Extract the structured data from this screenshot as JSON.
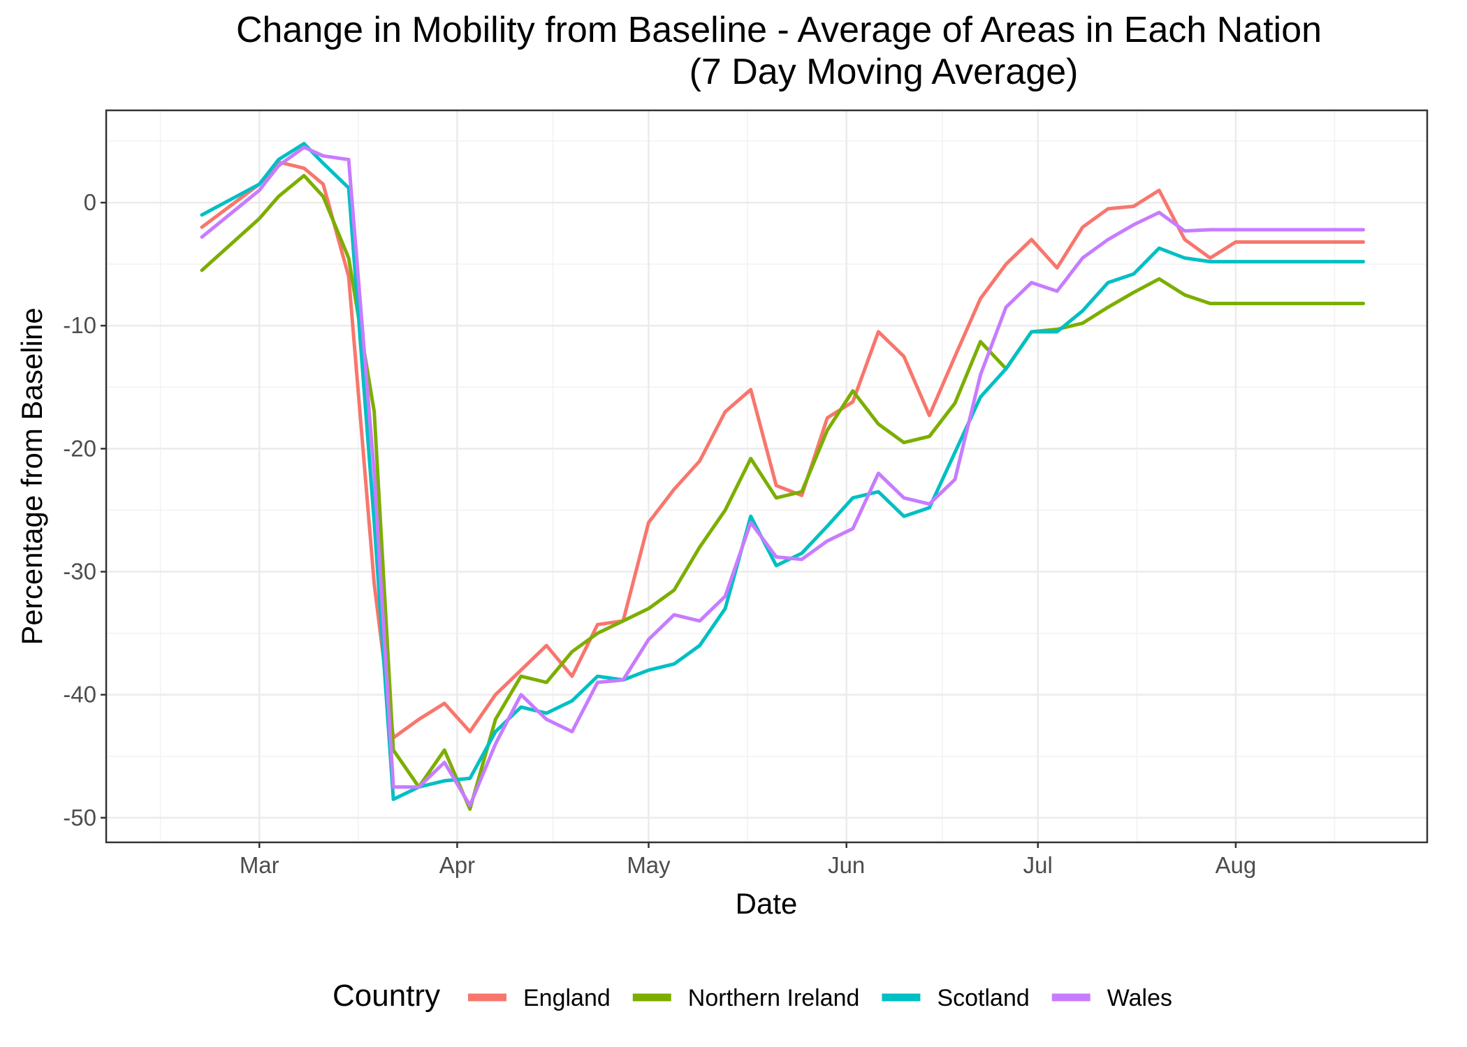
{
  "chart_data": {
    "type": "line",
    "title": "Change in Mobility from Baseline - Average of Areas in Each Nation",
    "subtitle": "(7 Day Moving Average)",
    "xlabel": "Date",
    "ylabel": "Percentage from Baseline",
    "x_ticks": [
      "Mar",
      "Apr",
      "May",
      "Jun",
      "Jul",
      "Aug"
    ],
    "x_tick_dates": [
      "2020-03-01",
      "2020-04-01",
      "2020-05-01",
      "2020-06-01",
      "2020-07-01",
      "2020-08-01"
    ],
    "xlim": [
      "2020-02-06",
      "2020-08-31"
    ],
    "y_ticks": [
      0,
      -10,
      -20,
      -30,
      -40,
      -50
    ],
    "ylim": [
      -52,
      7.5
    ],
    "grid": true,
    "legend_title": "Country",
    "legend_position": "bottom",
    "x_dates": [
      "2020-02-21",
      "2020-03-01",
      "2020-03-04",
      "2020-03-08",
      "2020-03-11",
      "2020-03-15",
      "2020-03-19",
      "2020-03-22",
      "2020-03-26",
      "2020-03-30",
      "2020-04-03",
      "2020-04-07",
      "2020-04-11",
      "2020-04-15",
      "2020-04-19",
      "2020-04-23",
      "2020-04-27",
      "2020-05-01",
      "2020-05-05",
      "2020-05-09",
      "2020-05-13",
      "2020-05-17",
      "2020-05-21",
      "2020-05-25",
      "2020-05-29",
      "2020-06-02",
      "2020-06-06",
      "2020-06-10",
      "2020-06-14",
      "2020-06-18",
      "2020-06-22",
      "2020-06-26",
      "2020-06-30",
      "2020-07-04",
      "2020-07-08",
      "2020-07-12",
      "2020-07-16",
      "2020-07-20",
      "2020-07-24",
      "2020-07-28",
      "2020-08-01",
      "2020-08-05",
      "2020-08-09",
      "2020-08-13",
      "2020-08-17",
      "2020-08-21"
    ],
    "series": [
      {
        "name": "England",
        "color": "#F8766D",
        "values": [
          -2,
          1.5,
          3.3,
          2.8,
          1.5,
          -6,
          -31,
          -43.5,
          -42,
          -40.7,
          -43,
          -40,
          -38,
          -36,
          -38.5,
          -34.3,
          -34,
          -26,
          -23.3,
          -21,
          -17,
          -15.2,
          -23,
          -23.8,
          -17.5,
          -16.2,
          -10.5,
          -12.5,
          -17.3,
          -12.5,
          -7.8,
          -5,
          -3,
          -5.3,
          -2,
          -0.5,
          -0.3,
          1,
          -3,
          -4.5,
          -3.2,
          -3.2,
          -3.2,
          -3.2,
          -3.2,
          -3.2
        ]
      },
      {
        "name": "Northern Ireland",
        "color": "#7CAE00",
        "values": [
          -5.5,
          -1.3,
          0.5,
          2.2,
          0.5,
          -4.5,
          -17,
          -44.5,
          -47.5,
          -44.5,
          -49.3,
          -42,
          -38.5,
          -39,
          -36.5,
          -35,
          -34,
          -33,
          -31.5,
          -28,
          -25,
          -20.8,
          -24,
          -23.5,
          -18.5,
          -15.3,
          -18,
          -19.5,
          -19,
          -16.3,
          -11.3,
          -13.5,
          -10.5,
          -10.3,
          -9.8,
          -8.5,
          -7.3,
          -6.2,
          -7.5,
          -8.2,
          -8.2,
          -8.2,
          -8.2,
          -8.2,
          -8.2,
          -8.2
        ]
      },
      {
        "name": "Scotland",
        "color": "#00BFC4",
        "values": [
          -1,
          1.5,
          3.5,
          4.8,
          3.2,
          1.2,
          -26,
          -48.5,
          -47.5,
          -47,
          -46.8,
          -43,
          -41,
          -41.5,
          -40.5,
          -38.5,
          -38.8,
          -38,
          -37.5,
          -36,
          -33,
          -25.5,
          -29.5,
          -28.5,
          -26.3,
          -24,
          -23.5,
          -25.5,
          -24.8,
          -20.3,
          -15.8,
          -13.5,
          -10.5,
          -10.5,
          -8.8,
          -6.5,
          -5.8,
          -3.7,
          -4.5,
          -4.8,
          -4.8,
          -4.8,
          -4.8,
          -4.8,
          -4.8,
          -4.8
        ]
      },
      {
        "name": "Wales",
        "color": "#C77CFF",
        "values": [
          -2.8,
          1,
          3,
          4.5,
          3.8,
          3.5,
          -22,
          -47.5,
          -47.5,
          -45.5,
          -49,
          -44,
          -40,
          -42,
          -43,
          -39,
          -38.8,
          -35.5,
          -33.5,
          -34,
          -32,
          -26,
          -28.8,
          -29,
          -27.5,
          -26.5,
          -22,
          -24,
          -24.5,
          -22.5,
          -14,
          -8.5,
          -6.5,
          -7.2,
          -4.5,
          -3,
          -1.8,
          -0.8,
          -2.3,
          -2.2,
          -2.2,
          -2.2,
          -2.2,
          -2.2,
          -2.2,
          -2.2
        ]
      }
    ]
  }
}
